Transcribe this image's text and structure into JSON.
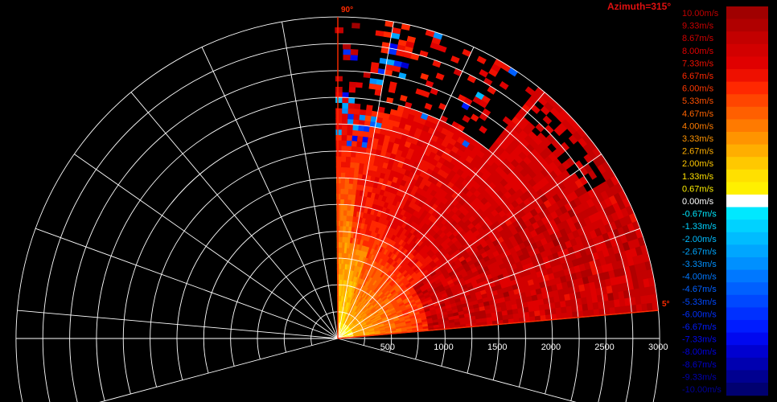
{
  "chart_data": {
    "type": "heatmap",
    "plot_kind": "PPI radar sector (radial velocity)",
    "title": "Azimuth=315°",
    "sector_angle_labels": [
      "90°",
      "5°"
    ],
    "range_ticks": [
      "500",
      "1000",
      "1500",
      "2000",
      "2500",
      "3000"
    ],
    "range_tick_values": [
      500,
      1000,
      1500,
      2000,
      2500,
      3000
    ],
    "range_max": 3000,
    "sector_start_deg": 5,
    "sector_end_deg": 90,
    "range_rings": [
      250,
      500,
      750,
      1000,
      1250,
      1500,
      1750,
      2000,
      2250,
      2500,
      2750,
      3000
    ],
    "spokes_deg": [
      -15,
      5,
      20,
      35,
      50,
      65,
      80,
      90,
      100,
      115,
      130,
      145,
      160,
      175,
      195
    ],
    "approx_fields": [
      {
        "region": "near range (0–1000 m), high angles",
        "value_ms": 1.3
      },
      {
        "region": "mid range band (1000–2300 m)",
        "value_ms": 7.5
      },
      {
        "region": "near range (0–1000 m), low angles",
        "value_ms": 8.0
      },
      {
        "region": "outer range (2300–3000 m), 55–75°",
        "value_ms": null
      }
    ],
    "colorbar": {
      "labels": [
        "10.00m/s",
        "9.33m/s",
        "8.67m/s",
        "8.00m/s",
        "7.33m/s",
        "6.67m/s",
        "6.00m/s",
        "5.33m/s",
        "4.67m/s",
        "4.00m/s",
        "3.33m/s",
        "2.67m/s",
        "2.00m/s",
        "1.33m/s",
        "0.67m/s",
        "0.00m/s",
        "-0.67m/s",
        "-1.33m/s",
        "-2.00m/s",
        "-2.67m/s",
        "-3.33m/s",
        "-4.00m/s",
        "-4.67m/s",
        "-5.33m/s",
        "-6.00m/s",
        "-6.67m/s",
        "-7.33m/s",
        "-8.00m/s",
        "-8.67m/s",
        "-9.33m/s",
        "-10.00m/s"
      ],
      "values": [
        10.0,
        9.33,
        8.67,
        8.0,
        7.33,
        6.67,
        6.0,
        5.33,
        4.67,
        4.0,
        3.33,
        2.67,
        2.0,
        1.33,
        0.67,
        0.0,
        -0.67,
        -1.33,
        -2.0,
        -2.67,
        -3.33,
        -4.0,
        -4.67,
        -5.33,
        -6.0,
        -6.67,
        -7.33,
        -8.0,
        -8.67,
        -9.33,
        -10.0
      ],
      "colors": [
        "#a00000",
        "#b00000",
        "#c30000",
        "#d20000",
        "#e00000",
        "#ee1000",
        "#ff2800",
        "#ff4500",
        "#ff5f00",
        "#ff7a00",
        "#ff9400",
        "#ffae00",
        "#ffc800",
        "#ffe000",
        "#fff000",
        "#ffffff",
        "#00e8ff",
        "#00d2ff",
        "#00bcff",
        "#00a6ff",
        "#0090ff",
        "#0078ff",
        "#0060ff",
        "#0048ff",
        "#0030ff",
        "#001cff",
        "#0008f0",
        "#0000d0",
        "#0000b0",
        "#000090",
        "#000070"
      ],
      "label_colors": [
        "#c00000",
        "#c80000",
        "#d00000",
        "#e00000",
        "#ee1000",
        "#ff2800",
        "#ff3800",
        "#ff5000",
        "#ff6400",
        "#ff7c00",
        "#ff9400",
        "#ffae00",
        "#ffc800",
        "#ffe000",
        "#fff000",
        "#ffffff",
        "#00e8ff",
        "#00d2ff",
        "#00bcff",
        "#00a6ff",
        "#0090ff",
        "#0078ff",
        "#0060ff",
        "#0048ff",
        "#0030ff",
        "#001cff",
        "#0008f0",
        "#0000e0",
        "#0000c8",
        "#0000b0",
        "#000098"
      ]
    }
  }
}
